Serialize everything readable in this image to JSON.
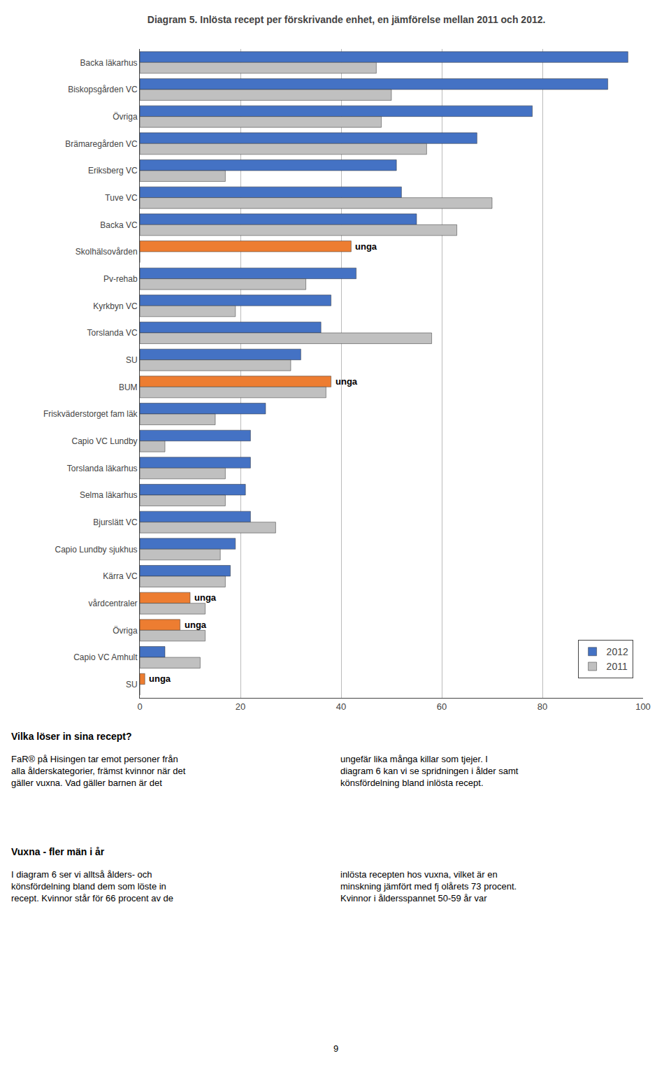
{
  "chart_data": {
    "type": "bar",
    "orientation": "horizontal",
    "title": "Diagram 5. Inlösta recept per förskrivande enhet, en jämförelse mellan 2011 och 2012.",
    "categories": [
      "Backa läkarhus",
      "Biskopsgården VC",
      "Övriga",
      "Brämaregården VC",
      "Eriksberg VC",
      "Tuve VC",
      "Backa VC",
      "Skolhälsovården",
      "Pv-rehab",
      "Kyrkbyn VC",
      "Torslanda VC",
      "SU",
      "BUM",
      "Friskväderstorget fam läk",
      "Capio VC Lundby",
      "Torslanda läkarhus",
      "Selma läkarhus",
      "Bjurslätt VC",
      "Capio Lundby sjukhus",
      "Kärra VC",
      "vårdcentraler",
      "Övriga",
      "Capio VC Amhult",
      "SU"
    ],
    "series": [
      {
        "name": "2012",
        "colors": [
          "#4472C4",
          "#4472C4",
          "#4472C4",
          "#4472C4",
          "#4472C4",
          "#4472C4",
          "#4472C4",
          "#ED7D31",
          "#4472C4",
          "#4472C4",
          "#4472C4",
          "#4472C4",
          "#ED7D31",
          "#4472C4",
          "#4472C4",
          "#4472C4",
          "#4472C4",
          "#4472C4",
          "#4472C4",
          "#4472C4",
          "#ED7D31",
          "#ED7D31",
          "#4472C4",
          "#ED7D31"
        ],
        "values": [
          97,
          93,
          78,
          67,
          51,
          52,
          55,
          42,
          43,
          38,
          36,
          32,
          38,
          25,
          22,
          22,
          21,
          22,
          19,
          18,
          10,
          8,
          5,
          1
        ]
      },
      {
        "name": "2011",
        "color": "#C0C0C0",
        "values": [
          47,
          50,
          48,
          57,
          17,
          70,
          63,
          0,
          33,
          19,
          58,
          30,
          37,
          15,
          5,
          17,
          17,
          27,
          16,
          17,
          13,
          13,
          12,
          0
        ]
      }
    ],
    "xlim": [
      0,
      100
    ],
    "xticks": [
      0,
      20,
      40,
      60,
      80,
      100
    ],
    "grid": true,
    "legend": "lower right",
    "annotations": [
      {
        "text": "unga",
        "x": 42,
        "y": 7,
        "series": "2012"
      },
      {
        "text": "unga",
        "x": 38,
        "y": 12,
        "series": "2012"
      },
      {
        "text": "unga",
        "x": 10,
        "y": 20,
        "series": "2012"
      },
      {
        "text": "unga",
        "x": 8,
        "y": 21,
        "series": "2012"
      },
      {
        "text": "unga",
        "x": 1,
        "y": 23,
        "series": "2012"
      },
      {
        "text": "Vilka löser in sina recept?"
      },
      {
        "text": "FaR® på Hisingen tar emot personer från\nalla ålderskategorier, främst kvinnor när det\ngäller vuxna. Vad gäller barnen är det"
      },
      {
        "text": "ungefär lika många killar som tjejer. I\ndiagram 6 kan vi se spridningen i ålder samt\nkönsfördelning bland inlösta recept."
      },
      {
        "text": "Vuxna - fler män i år"
      },
      {
        "text": "I diagram 6 ser vi alltså ålders- och\nkönsfördelning bland dem som löste in\nrecept. Kvinnor står för 66 procent av de"
      },
      {
        "text": "inlösta recepten hos vuxna, vilket är en\nminskning jämfört med fj olårets 73 procent.\nKvinnor i åldersspannet 50-59 år var"
      },
      {
        "text": "9"
      }
    ]
  }
}
